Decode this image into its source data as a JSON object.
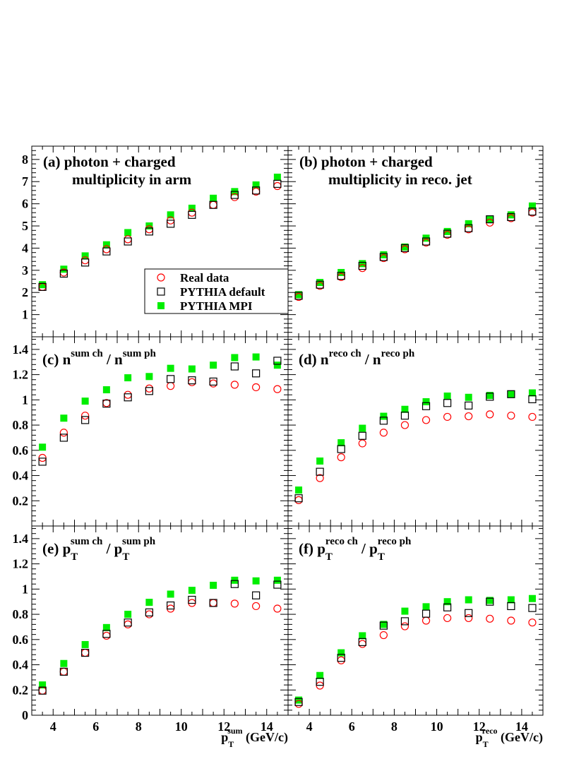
{
  "chart_data": [
    {
      "panel": "a",
      "type": "scatter",
      "title_line1": "(a)  photon + charged",
      "title_line2": "multiplicity in arm",
      "ylim": [
        0,
        8.6
      ],
      "yticks": [
        1,
        2,
        3,
        4,
        5,
        6,
        7,
        8
      ],
      "ytick_labels": [
        "1",
        "2",
        "3",
        "4",
        "5",
        "6",
        "7",
        "8"
      ],
      "x": [
        3.5,
        4.5,
        5.5,
        6.5,
        7.5,
        8.5,
        9.5,
        10.5,
        11.5,
        12.5,
        13.5,
        14.5
      ],
      "series": [
        {
          "name": "Real data",
          "marker": "open-circle",
          "color": "#ff0000",
          "values": [
            2.25,
            2.9,
            3.45,
            3.95,
            4.4,
            4.85,
            5.25,
            5.6,
            5.95,
            6.3,
            6.55,
            6.8
          ]
        },
        {
          "name": "PYTHIA default",
          "marker": "open-square",
          "color": "#000000",
          "values": [
            2.25,
            2.85,
            3.35,
            3.85,
            4.3,
            4.75,
            5.1,
            5.5,
            5.95,
            6.4,
            6.6,
            6.9
          ]
        },
        {
          "name": "PYTHIA MPI",
          "marker": "filled-square",
          "color": "#00ee00",
          "values": [
            2.35,
            3.05,
            3.65,
            4.15,
            4.7,
            5.0,
            5.5,
            5.8,
            6.25,
            6.55,
            6.85,
            7.2
          ]
        }
      ]
    },
    {
      "panel": "b",
      "type": "scatter",
      "title_line1": "(b)  photon + charged",
      "title_line2": "multiplicity in reco. jet",
      "ylim": [
        0,
        8.6
      ],
      "yticks": [
        1,
        2,
        3,
        4,
        5,
        6,
        7,
        8
      ],
      "x": [
        3.5,
        4.5,
        5.5,
        6.5,
        7.5,
        8.5,
        9.5,
        10.5,
        11.5,
        12.5,
        13.5,
        14.5
      ],
      "series": [
        {
          "name": "Real data",
          "marker": "open-circle",
          "color": "#ff0000",
          "values": [
            1.8,
            2.3,
            2.7,
            3.1,
            3.55,
            3.95,
            4.25,
            4.6,
            4.85,
            5.15,
            5.35,
            5.6
          ]
        },
        {
          "name": "PYTHIA default",
          "marker": "open-square",
          "color": "#000000",
          "values": [
            1.85,
            2.35,
            2.75,
            3.2,
            3.6,
            4.0,
            4.3,
            4.65,
            4.9,
            5.3,
            5.4,
            5.65
          ]
        },
        {
          "name": "PYTHIA MPI",
          "marker": "filled-square",
          "color": "#00ee00",
          "values": [
            1.9,
            2.45,
            2.9,
            3.3,
            3.7,
            4.05,
            4.45,
            4.75,
            5.1,
            5.3,
            5.5,
            5.9
          ]
        }
      ]
    },
    {
      "panel": "c",
      "type": "scatter",
      "title_prefix": "(c)",
      "title_num": "n",
      "title_num_sup": "sum ch",
      "title_den": "n",
      "title_den_sup": "sum ph",
      "title_den_sub": "",
      "title_num_sub": "",
      "ylim": [
        0,
        1.5
      ],
      "yticks": [
        0.2,
        0.4,
        0.6,
        0.8,
        1.0,
        1.2,
        1.4
      ],
      "ytick_labels": [
        "0.2",
        "0.4",
        "0.6",
        "0.8",
        "1",
        "1.2",
        "1.4"
      ],
      "x": [
        3.5,
        4.5,
        5.5,
        6.5,
        7.5,
        8.5,
        9.5,
        10.5,
        11.5,
        12.5,
        13.5,
        14.5
      ],
      "series": [
        {
          "name": "Real data",
          "marker": "open-circle",
          "color": "#ff0000",
          "values": [
            0.54,
            0.74,
            0.875,
            0.975,
            1.04,
            1.09,
            1.11,
            1.14,
            1.13,
            1.12,
            1.1,
            1.085
          ]
        },
        {
          "name": "PYTHIA default",
          "marker": "open-square",
          "color": "#000000",
          "values": [
            0.51,
            0.7,
            0.84,
            0.97,
            1.02,
            1.07,
            1.165,
            1.155,
            1.145,
            1.265,
            1.21,
            1.31
          ]
        },
        {
          "name": "PYTHIA MPI",
          "marker": "filled-square",
          "color": "#00ee00",
          "values": [
            0.625,
            0.855,
            0.99,
            1.08,
            1.175,
            1.185,
            1.25,
            1.245,
            1.275,
            1.335,
            1.34,
            1.275
          ]
        }
      ]
    },
    {
      "panel": "d",
      "type": "scatter",
      "title_prefix": "(d)",
      "title_num": "n",
      "title_num_sup": "reco ch",
      "title_den": "n",
      "title_den_sup": "reco ph",
      "title_den_sub": "",
      "title_num_sub": "",
      "ylim": [
        0,
        1.5
      ],
      "yticks": [
        0.2,
        0.4,
        0.6,
        0.8,
        1.0,
        1.2,
        1.4
      ],
      "x": [
        3.5,
        4.5,
        5.5,
        6.5,
        7.5,
        8.5,
        9.5,
        10.5,
        11.5,
        12.5,
        13.5,
        14.5
      ],
      "series": [
        {
          "name": "Real data",
          "marker": "open-circle",
          "color": "#ff0000",
          "values": [
            0.205,
            0.38,
            0.545,
            0.655,
            0.74,
            0.8,
            0.84,
            0.865,
            0.87,
            0.885,
            0.875,
            0.865
          ]
        },
        {
          "name": "PYTHIA default",
          "marker": "open-square",
          "color": "#000000",
          "values": [
            0.22,
            0.43,
            0.61,
            0.715,
            0.835,
            0.875,
            0.95,
            0.975,
            0.955,
            1.025,
            1.045,
            1.005
          ]
        },
        {
          "name": "PYTHIA MPI",
          "marker": "filled-square",
          "color": "#00ee00",
          "values": [
            0.285,
            0.515,
            0.66,
            0.775,
            0.87,
            0.925,
            0.985,
            1.03,
            1.02,
            1.035,
            1.045,
            1.055
          ]
        }
      ]
    },
    {
      "panel": "e",
      "type": "scatter",
      "title_prefix": "(e)",
      "title_num": "p",
      "title_num_sup": "sum ch",
      "title_num_sub": "T",
      "title_den": "p",
      "title_den_sup": "sum ph",
      "title_den_sub": "T",
      "ylim": [
        0,
        1.5
      ],
      "yticks": [
        0,
        0.2,
        0.4,
        0.6,
        0.8,
        1.0,
        1.2,
        1.4
      ],
      "ytick_labels": [
        "0",
        "0.2",
        "0.4",
        "0.6",
        "0.8",
        "1",
        "1.2",
        "1.4"
      ],
      "x": [
        3.5,
        4.5,
        5.5,
        6.5,
        7.5,
        8.5,
        9.5,
        10.5,
        11.5,
        12.5,
        13.5,
        14.5
      ],
      "series": [
        {
          "name": "Real data",
          "marker": "open-circle",
          "color": "#ff0000",
          "values": [
            0.195,
            0.345,
            0.495,
            0.63,
            0.72,
            0.8,
            0.845,
            0.89,
            0.89,
            0.885,
            0.865,
            0.845
          ]
        },
        {
          "name": "PYTHIA default",
          "marker": "open-square",
          "color": "#000000",
          "values": [
            0.195,
            0.345,
            0.495,
            0.645,
            0.735,
            0.815,
            0.87,
            0.915,
            0.89,
            1.04,
            0.95,
            1.035
          ]
        },
        {
          "name": "PYTHIA MPI",
          "marker": "filled-square",
          "color": "#00ee00",
          "values": [
            0.24,
            0.41,
            0.56,
            0.695,
            0.8,
            0.895,
            0.96,
            0.99,
            1.03,
            1.07,
            1.065,
            1.07
          ]
        }
      ]
    },
    {
      "panel": "f",
      "type": "scatter",
      "title_prefix": "(f)",
      "title_num": "p",
      "title_num_sup": "reco ch",
      "title_num_sub": "T",
      "title_den": "p",
      "title_den_sup": "reco ph",
      "title_den_sub": "T",
      "ylim": [
        0,
        1.5
      ],
      "yticks": [
        0,
        0.2,
        0.4,
        0.6,
        0.8,
        1.0,
        1.2,
        1.4
      ],
      "x": [
        3.5,
        4.5,
        5.5,
        6.5,
        7.5,
        8.5,
        9.5,
        10.5,
        11.5,
        12.5,
        13.5,
        14.5
      ],
      "series": [
        {
          "name": "Real data",
          "marker": "open-circle",
          "color": "#ff0000",
          "values": [
            0.09,
            0.235,
            0.435,
            0.565,
            0.635,
            0.705,
            0.75,
            0.77,
            0.77,
            0.765,
            0.75,
            0.735
          ]
        },
        {
          "name": "PYTHIA default",
          "marker": "open-square",
          "color": "#000000",
          "values": [
            0.105,
            0.265,
            0.455,
            0.58,
            0.71,
            0.745,
            0.805,
            0.855,
            0.81,
            0.9,
            0.865,
            0.85
          ]
        },
        {
          "name": "PYTHIA MPI",
          "marker": "filled-square",
          "color": "#00ee00",
          "values": [
            0.12,
            0.315,
            0.495,
            0.63,
            0.72,
            0.825,
            0.86,
            0.9,
            0.915,
            0.91,
            0.915,
            0.925
          ]
        }
      ]
    }
  ],
  "x_axis": {
    "xlim": [
      3,
      15
    ],
    "ticks": [
      4,
      6,
      8,
      10,
      12,
      14
    ],
    "tick_labels": [
      "4",
      "6",
      "8",
      "10",
      "12",
      "14"
    ],
    "left_label": {
      "main": "p",
      "sub": "T",
      "sup": "sum",
      "unit": " (GeV/c)"
    },
    "right_label": {
      "main": "p",
      "sub": "T",
      "sup": "reco",
      "unit": " (GeV/c)"
    }
  },
  "legend": {
    "panel": "a",
    "placement": "lower-right",
    "entries": [
      "Real data",
      "PYTHIA default",
      "PYTHIA MPI"
    ]
  },
  "colors": {
    "real_data": "#ff0000",
    "pythia_default": "#000000",
    "pythia_mpi": "#00ee00"
  }
}
